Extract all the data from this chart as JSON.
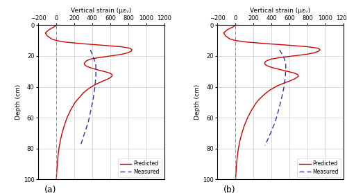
{
  "xlabel": "Vertical strain (μεᵥ)",
  "ylabel": "Depth (cm)",
  "xlim": [
    -200,
    1200
  ],
  "ylim": [
    100,
    0
  ],
  "xticks": [
    -200,
    0,
    200,
    400,
    600,
    800,
    1000,
    1200
  ],
  "yticks": [
    0,
    20,
    40,
    60,
    80,
    100
  ],
  "predicted_color": "#cc0000",
  "measured_color": "#3333aa",
  "predicted_a_depth": [
    0,
    1,
    3,
    5,
    7,
    9,
    10,
    11,
    12,
    13,
    14,
    15,
    16,
    17,
    18,
    19,
    20,
    21,
    22,
    23,
    24,
    25,
    26,
    27,
    28,
    29,
    30,
    31,
    32,
    33,
    34,
    35,
    36,
    37,
    38,
    39,
    40,
    42,
    44,
    46,
    48,
    50,
    55,
    60,
    65,
    70,
    75,
    80,
    85,
    90,
    95,
    100
  ],
  "predicted_a_strain": [
    0,
    -20,
    -80,
    -120,
    -100,
    -50,
    0,
    100,
    280,
    500,
    720,
    820,
    840,
    830,
    790,
    720,
    600,
    480,
    380,
    340,
    320,
    310,
    320,
    350,
    400,
    460,
    530,
    590,
    620,
    620,
    600,
    570,
    530,
    490,
    450,
    420,
    390,
    340,
    300,
    270,
    240,
    210,
    160,
    120,
    90,
    65,
    45,
    30,
    20,
    12,
    6,
    2
  ],
  "measured_a_depth": [
    16,
    19,
    22,
    26,
    33,
    40,
    48,
    55,
    63,
    70,
    78
  ],
  "measured_a_strain": [
    380,
    400,
    420,
    440,
    440,
    430,
    410,
    385,
    355,
    315,
    270
  ],
  "predicted_b_depth": [
    0,
    1,
    3,
    5,
    7,
    9,
    10,
    11,
    12,
    13,
    14,
    15,
    16,
    17,
    18,
    19,
    20,
    21,
    22,
    23,
    24,
    25,
    26,
    27,
    28,
    29,
    30,
    31,
    32,
    33,
    34,
    35,
    36,
    37,
    38,
    39,
    40,
    42,
    44,
    46,
    48,
    50,
    55,
    60,
    65,
    70,
    75,
    80,
    85,
    90,
    95,
    100
  ],
  "predicted_b_strain": [
    0,
    -20,
    -90,
    -130,
    -110,
    -60,
    0,
    130,
    340,
    580,
    800,
    920,
    940,
    920,
    870,
    780,
    640,
    500,
    400,
    350,
    330,
    325,
    340,
    380,
    440,
    510,
    580,
    650,
    690,
    700,
    680,
    650,
    610,
    565,
    520,
    480,
    445,
    385,
    340,
    300,
    265,
    235,
    180,
    135,
    100,
    72,
    50,
    33,
    22,
    13,
    7,
    2
  ],
  "measured_b_depth": [
    16,
    19,
    22,
    26,
    33,
    40,
    48,
    55,
    63,
    70,
    78
  ],
  "measured_b_strain": [
    490,
    520,
    545,
    560,
    555,
    540,
    510,
    480,
    440,
    390,
    330
  ],
  "labels": [
    "(a)",
    "(b)"
  ]
}
